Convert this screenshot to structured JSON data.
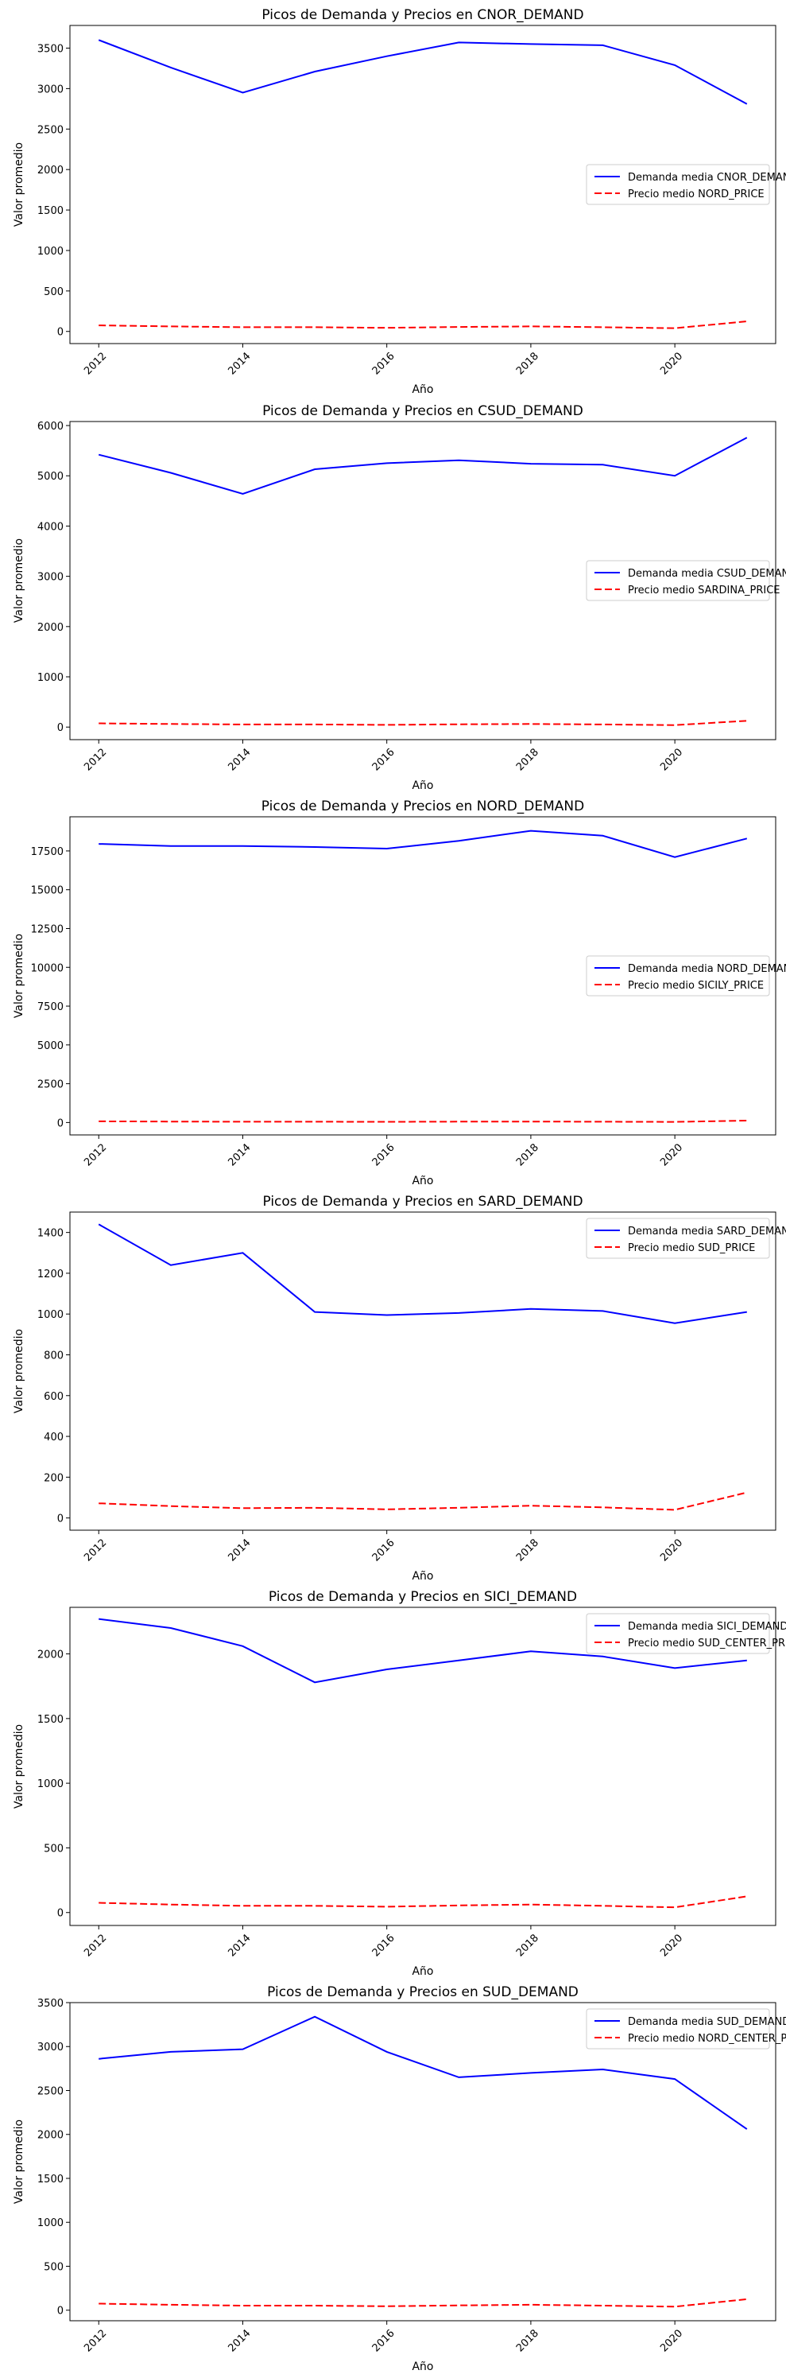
{
  "chart_data": [
    {
      "type": "line",
      "title": "Picos de Demanda y Precios en CNOR_DEMAND",
      "xlabel": "Año",
      "ylabel": "Valor promedio",
      "x": [
        2012,
        2013,
        2014,
        2015,
        2016,
        2017,
        2018,
        2019,
        2020,
        2021
      ],
      "xticks": [
        2012,
        2014,
        2016,
        2018,
        2020
      ],
      "yticks": [
        0,
        500,
        1000,
        1500,
        2000,
        2500,
        3000,
        3500
      ],
      "ylim": [
        -150,
        3780
      ],
      "legend_position": "center-right",
      "series": [
        {
          "name": "Demanda media CNOR_DEMAND",
          "color": "#0000ff",
          "style": "solid",
          "values": [
            3600,
            3260,
            2950,
            3210,
            3400,
            3570,
            3550,
            3535,
            3290,
            2810
          ]
        },
        {
          "name": "Precio medio NORD_PRICE",
          "color": "#ff0000",
          "style": "dashed",
          "values": [
            75,
            62,
            52,
            52,
            45,
            55,
            62,
            52,
            40,
            125
          ]
        }
      ]
    },
    {
      "type": "line",
      "title": "Picos de Demanda y Precios en CSUD_DEMAND",
      "xlabel": "Año",
      "ylabel": "Valor promedio",
      "x": [
        2012,
        2013,
        2014,
        2015,
        2016,
        2017,
        2018,
        2019,
        2020,
        2021
      ],
      "xticks": [
        2012,
        2014,
        2016,
        2018,
        2020
      ],
      "yticks": [
        0,
        1000,
        2000,
        3000,
        4000,
        5000,
        6000
      ],
      "ylim": [
        -250,
        6080
      ],
      "legend_position": "center-right",
      "series": [
        {
          "name": "Demanda media CSUD_DEMAND",
          "color": "#0000ff",
          "style": "solid",
          "values": [
            5420,
            5060,
            4640,
            5130,
            5250,
            5310,
            5240,
            5220,
            5000,
            5760
          ]
        },
        {
          "name": "Precio medio SARDINA_PRICE",
          "color": "#ff0000",
          "style": "dashed",
          "values": [
            75,
            62,
            52,
            52,
            45,
            55,
            62,
            52,
            40,
            125
          ]
        }
      ]
    },
    {
      "type": "line",
      "title": "Picos de Demanda y Precios en NORD_DEMAND",
      "xlabel": "Año",
      "ylabel": "Valor promedio",
      "x": [
        2012,
        2013,
        2014,
        2015,
        2016,
        2017,
        2018,
        2019,
        2020,
        2021
      ],
      "xticks": [
        2012,
        2014,
        2016,
        2018,
        2020
      ],
      "yticks": [
        0,
        2500,
        5000,
        7500,
        10000,
        12500,
        15000,
        17500
      ],
      "ylim": [
        -800,
        19700
      ],
      "legend_position": "center-right",
      "series": [
        {
          "name": "Demanda media NORD_DEMAND",
          "color": "#0000ff",
          "style": "solid",
          "values": [
            17950,
            17820,
            17820,
            17750,
            17650,
            18150,
            18800,
            18480,
            17100,
            18300
          ]
        },
        {
          "name": "Precio medio SICILY_PRICE",
          "color": "#ff0000",
          "style": "dashed",
          "values": [
            75,
            62,
            52,
            52,
            45,
            55,
            62,
            52,
            40,
            125
          ]
        }
      ]
    },
    {
      "type": "line",
      "title": "Picos de Demanda y Precios en SARD_DEMAND",
      "xlabel": "Año",
      "ylabel": "Valor promedio",
      "x": [
        2012,
        2013,
        2014,
        2015,
        2016,
        2017,
        2018,
        2019,
        2020,
        2021
      ],
      "xticks": [
        2012,
        2014,
        2016,
        2018,
        2020
      ],
      "yticks": [
        0,
        200,
        400,
        600,
        800,
        1000,
        1200,
        1400
      ],
      "ylim": [
        -60,
        1500
      ],
      "legend_position": "upper-right",
      "series": [
        {
          "name": "Demanda media SARD_DEMAND",
          "color": "#0000ff",
          "style": "solid",
          "values": [
            1440,
            1240,
            1300,
            1010,
            995,
            1005,
            1025,
            1015,
            955,
            1010
          ]
        },
        {
          "name": "Precio medio SUD_PRICE",
          "color": "#ff0000",
          "style": "dashed",
          "values": [
            72,
            58,
            48,
            50,
            42,
            50,
            60,
            52,
            40,
            125
          ]
        }
      ]
    },
    {
      "type": "line",
      "title": "Picos de Demanda y Precios en SICI_DEMAND",
      "xlabel": "Año",
      "ylabel": "Valor promedio",
      "x": [
        2012,
        2013,
        2014,
        2015,
        2016,
        2017,
        2018,
        2019,
        2020,
        2021
      ],
      "xticks": [
        2012,
        2014,
        2016,
        2018,
        2020
      ],
      "yticks": [
        0,
        500,
        1000,
        1500,
        2000
      ],
      "ylim": [
        -100,
        2360
      ],
      "legend_position": "upper-right",
      "series": [
        {
          "name": "Demanda media SICI_DEMAND",
          "color": "#0000ff",
          "style": "solid",
          "values": [
            2270,
            2200,
            2060,
            1780,
            1880,
            1950,
            2020,
            1980,
            1890,
            1950
          ]
        },
        {
          "name": "Precio medio SUD_CENTER_PRICE",
          "color": "#ff0000",
          "style": "dashed",
          "values": [
            75,
            62,
            52,
            52,
            45,
            55,
            62,
            52,
            40,
            125
          ]
        }
      ]
    },
    {
      "type": "line",
      "title": "Picos de Demanda y Precios en SUD_DEMAND",
      "xlabel": "Año",
      "ylabel": "Valor promedio",
      "x": [
        2012,
        2013,
        2014,
        2015,
        2016,
        2017,
        2018,
        2019,
        2020,
        2021
      ],
      "xticks": [
        2012,
        2014,
        2016,
        2018,
        2020
      ],
      "yticks": [
        0,
        500,
        1000,
        1500,
        2000,
        2500,
        3000,
        3500
      ],
      "ylim": [
        -120,
        3500
      ],
      "legend_position": "upper-right",
      "series": [
        {
          "name": "Demanda media SUD_DEMAND",
          "color": "#0000ff",
          "style": "solid",
          "values": [
            2860,
            2940,
            2970,
            3340,
            2940,
            2650,
            2700,
            2740,
            2630,
            2060
          ]
        },
        {
          "name": "Precio medio NORD_CENTER_PRICE",
          "color": "#ff0000",
          "style": "dashed",
          "values": [
            75,
            62,
            52,
            52,
            45,
            55,
            62,
            52,
            40,
            125
          ]
        }
      ]
    }
  ]
}
